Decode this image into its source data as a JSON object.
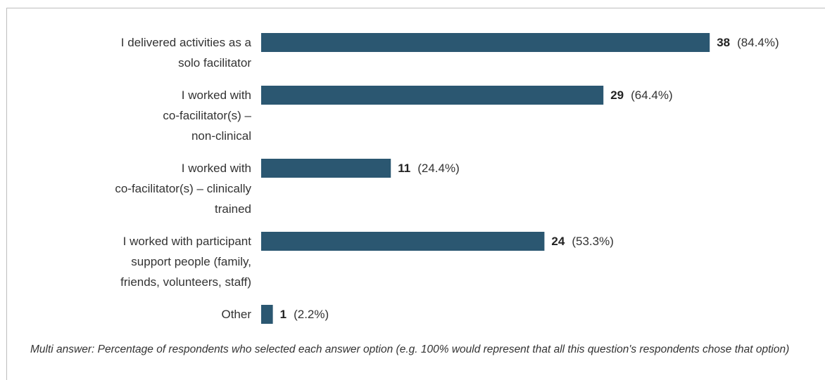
{
  "chart_data": {
    "type": "bar",
    "orientation": "horizontal",
    "categories": [
      [
        "I delivered activities as a",
        "solo facilitator"
      ],
      [
        "I worked with",
        "co-facilitator(s) –",
        "non-clinical"
      ],
      [
        "I worked with",
        "co-facilitator(s) – clinically",
        "trained"
      ],
      [
        "I worked with participant",
        "support people (family,",
        "friends, volunteers, staff)"
      ],
      [
        "Other"
      ]
    ],
    "values": [
      38,
      29,
      11,
      24,
      1
    ],
    "percent_labels": [
      "(84.4%)",
      "(64.4%)",
      "(24.4%)",
      "(53.3%)",
      "(2.2%)"
    ],
    "percent_values": [
      84.4,
      64.4,
      24.4,
      53.3,
      2.2
    ],
    "xlim": [
      0,
      100
    ],
    "bar_color": "#2b5771",
    "grid": false,
    "legend": "none",
    "footnote": "Multi answer: Percentage of respondents who selected each answer option (e.g. 100% would represent that all this question's respondents chose that option)"
  }
}
